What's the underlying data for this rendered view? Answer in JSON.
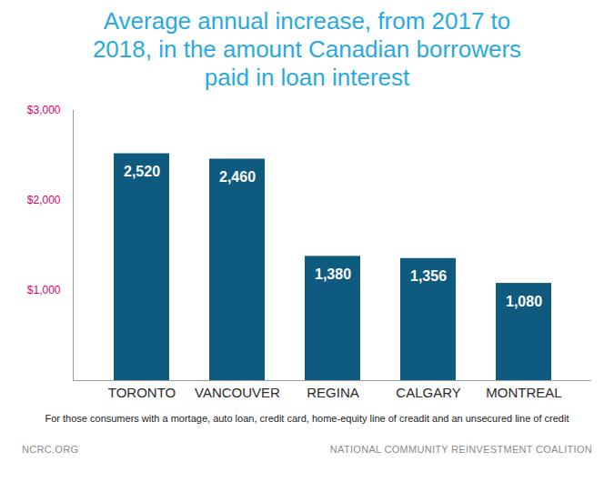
{
  "chart_data": {
    "type": "bar",
    "title": "Average annual increase, from 2017 to 2018, in the amount Canadian borrowers paid in loan interest",
    "categories": [
      "TORONTO",
      "VANCOUVER",
      "REGINA",
      "CALGARY",
      "MONTREAL"
    ],
    "values": [
      2520,
      2460,
      1380,
      1356,
      1080
    ],
    "value_labels": [
      "2,520",
      "2,460",
      "1,380",
      "1,356",
      "1,080"
    ],
    "data_labels": true,
    "color": "#0f5a7f",
    "ylim": [
      0,
      3000
    ],
    "yticks": [
      {
        "value": 1000,
        "label": "$1,000"
      },
      {
        "value": 2000,
        "label": "$2,000"
      },
      {
        "value": 3000,
        "label": "$3,000"
      }
    ],
    "grid": false,
    "caption": "For those consumers with a mortage, auto loan, credit card, home-equity line of creadit and an unsecured line of credit",
    "footer": [
      "NCRC.ORG",
      "NATIONAL COMMUNITY REINVESTMENT COALITION"
    ]
  }
}
